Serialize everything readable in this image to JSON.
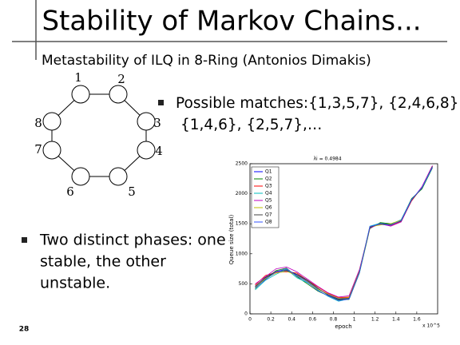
{
  "slide": {
    "title": "Stability of Markov Chains...",
    "subtitle": "Metastability of ILQ in 8-Ring (Antonios Dimakis)",
    "matches": [
      "Possible matches:{1,3,5,7}, {2,4,6,8}",
      "{1,4,6}, {2,5,7},…"
    ],
    "phases": [
      "Two distinct phases: one",
      "stable, the other",
      "unstable."
    ],
    "page_number": "28"
  },
  "ring": {
    "nodes": [
      "1",
      "2",
      "3",
      "4",
      "5",
      "6",
      "7",
      "8"
    ]
  },
  "chart_data": {
    "type": "line",
    "title": "λi = 0.4984",
    "x_label": "epoch",
    "y_label": "Queue size (total)",
    "x_scale_note": "x 10^5",
    "x": [
      0.05,
      0.15,
      0.25,
      0.35,
      0.45,
      0.55,
      0.65,
      0.75,
      0.85,
      0.95,
      1.05,
      1.15,
      1.25,
      1.35,
      1.45,
      1.55,
      1.65,
      1.75
    ],
    "series": [
      {
        "name": "Q1",
        "color": "#0000ff",
        "values": [
          450,
          600,
          700,
          720,
          650,
          550,
          420,
          320,
          250,
          260,
          700,
          1450,
          1500,
          1480,
          1550,
          1900,
          2100,
          2450
        ]
      },
      {
        "name": "Q2",
        "color": "#008000",
        "values": [
          420,
          580,
          720,
          760,
          620,
          500,
          380,
          300,
          230,
          240,
          680,
          1420,
          1520,
          1500,
          1560,
          1920,
          2080,
          2430
        ]
      },
      {
        "name": "Q3",
        "color": "#ff0000",
        "values": [
          480,
          640,
          690,
          700,
          680,
          560,
          450,
          340,
          270,
          280,
          720,
          1440,
          1490,
          1470,
          1540,
          1880,
          2110,
          2460
        ]
      },
      {
        "name": "Q4",
        "color": "#00bfbf",
        "values": [
          400,
          560,
          660,
          740,
          600,
          520,
          400,
          290,
          210,
          250,
          690,
          1460,
          1510,
          1490,
          1570,
          1910,
          2090,
          2440
        ]
      },
      {
        "name": "Q5",
        "color": "#bf00bf",
        "values": [
          500,
          620,
          750,
          780,
          700,
          580,
          460,
          350,
          280,
          300,
          740,
          1430,
          1500,
          1460,
          1530,
          1890,
          2120,
          2470
        ]
      },
      {
        "name": "Q6",
        "color": "#bfbf00",
        "values": [
          440,
          590,
          680,
          710,
          640,
          540,
          410,
          330,
          260,
          270,
          710,
          1450,
          1480,
          1500,
          1560,
          1900,
          2100,
          2450
        ]
      },
      {
        "name": "Q7",
        "color": "#404040",
        "values": [
          460,
          610,
          710,
          730,
          660,
          560,
          430,
          310,
          240,
          255,
          700,
          1440,
          1505,
          1485,
          1545,
          1895,
          2095,
          2455
        ]
      },
      {
        "name": "Q8",
        "color": "#3050ff",
        "values": [
          430,
          570,
          700,
          750,
          630,
          530,
          390,
          300,
          220,
          245,
          690,
          1455,
          1495,
          1475,
          1555,
          1905,
          2105,
          2440
        ]
      }
    ],
    "xlim": [
      0,
      1.8
    ],
    "ylim": [
      0,
      2500
    ],
    "xticks": [
      0,
      0.2,
      0.4,
      0.6,
      0.8,
      1,
      1.2,
      1.4,
      1.6
    ],
    "yticks": [
      0,
      500,
      1000,
      1500,
      2000,
      2500
    ]
  }
}
